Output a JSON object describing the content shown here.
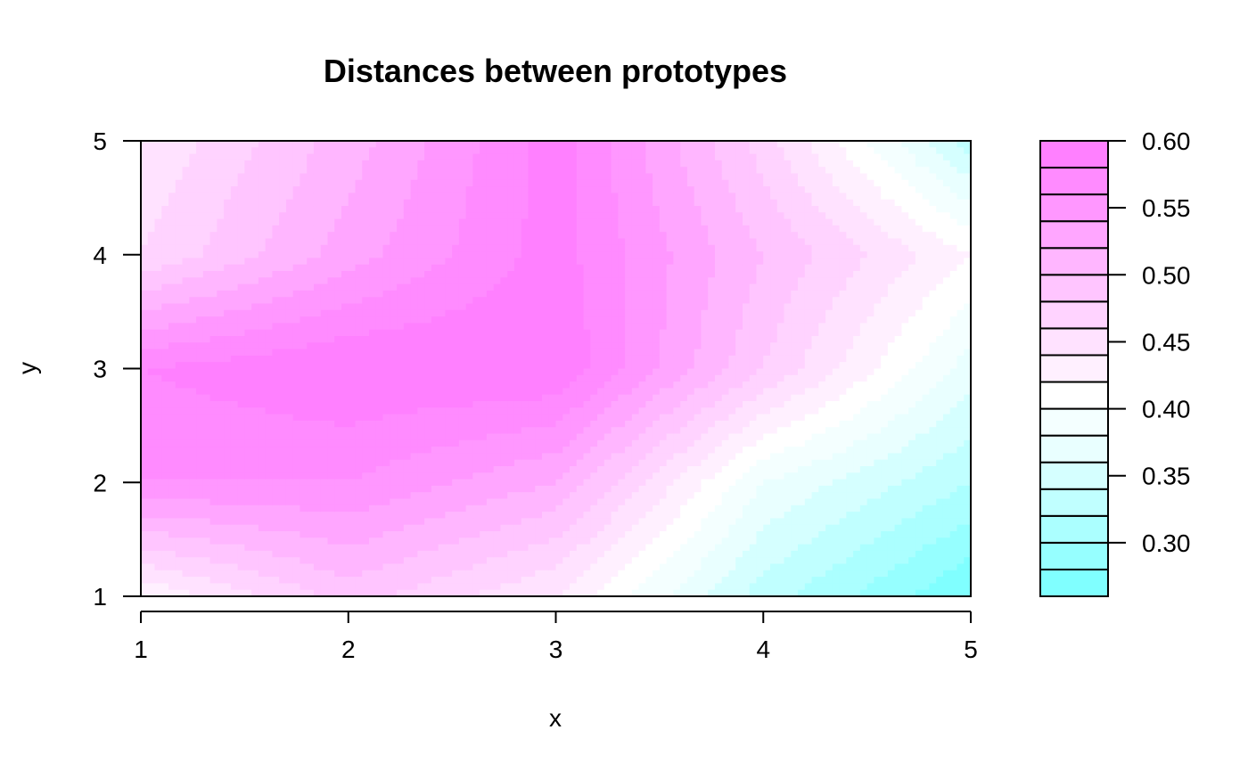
{
  "chart_data": {
    "type": "heatmap",
    "subtype": "filled-contour",
    "title": "Distances between prototypes",
    "xlabel": "x",
    "ylabel": "y",
    "xlim": [
      1,
      5
    ],
    "ylim": [
      1,
      5
    ],
    "x_ticks": [
      "1",
      "2",
      "3",
      "4",
      "5"
    ],
    "y_ticks": [
      "1",
      "2",
      "3",
      "4",
      "5"
    ],
    "x": [
      1,
      2,
      3,
      4,
      5
    ],
    "y": [
      1,
      2,
      3,
      4,
      5
    ],
    "z": [
      [
        0.42,
        0.49,
        0.44,
        0.33,
        0.26
      ],
      [
        0.56,
        0.56,
        0.52,
        0.38,
        0.32
      ],
      [
        0.58,
        0.6,
        0.6,
        0.48,
        0.37
      ],
      [
        0.46,
        0.53,
        0.59,
        0.5,
        0.42
      ],
      [
        0.44,
        0.51,
        0.59,
        0.47,
        0.33
      ]
    ],
    "levels": [
      0.26,
      0.28,
      0.3,
      0.32,
      0.34,
      0.36,
      0.38,
      0.4,
      0.42,
      0.44,
      0.46,
      0.48,
      0.5,
      0.52,
      0.54,
      0.56,
      0.58,
      0.6
    ],
    "level_colors": [
      "#80FFFF",
      "#96FFFF",
      "#ABFFFF",
      "#C0FFFF",
      "#D5FFFF",
      "#E9FFFF",
      "#F4FFFF",
      "#FFFFFF",
      "#FFF0FF",
      "#FFE2FF",
      "#FFD3FF",
      "#FFC5FF",
      "#FFB6FF",
      "#FFA6FF",
      "#FF97FF",
      "#FF8BFF",
      "#FF80FF"
    ],
    "colorbar_ticks": [
      "0.30",
      "0.35",
      "0.40",
      "0.45",
      "0.50",
      "0.55",
      "0.60"
    ],
    "colorbar_tick_values": [
      0.3,
      0.35,
      0.4,
      0.45,
      0.5,
      0.55,
      0.6
    ],
    "legend_position": "right"
  }
}
